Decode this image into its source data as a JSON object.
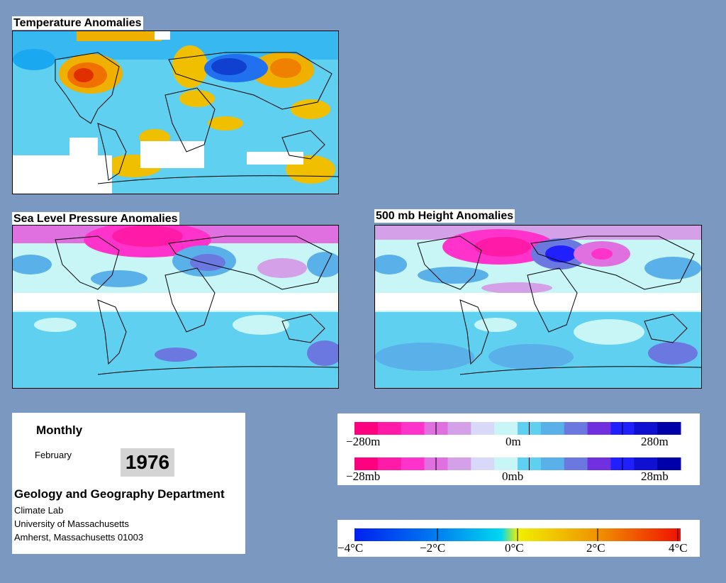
{
  "panels": {
    "temperature": {
      "title": "Temperature Anomalies"
    },
    "slp": {
      "title": "Sea Level Pressure Anomalies"
    },
    "height500": {
      "title": "500 mb Height Anomalies"
    }
  },
  "info": {
    "period_type": "Monthly",
    "month": "February",
    "year": "1976",
    "department": "Geology and Geography Department",
    "lab": "Climate Lab",
    "university": "University of Massachusetts",
    "address": "Amherst, Massachusetts 01003"
  },
  "legend_height": {
    "min_label": "−280m",
    "mid_label": "0m",
    "max_label": "280m",
    "colors": [
      "#ff0080",
      "#ff1aa8",
      "#ff33cc",
      "#e070e0",
      "#d4a0e8",
      "#d8d8f8",
      "#c8f6f6",
      "#5fd0f0",
      "#5ab0e8",
      "#6a78e0",
      "#7030e0",
      "#2020ff",
      "#1010d0",
      "#0000a8"
    ]
  },
  "legend_pressure": {
    "min_label": "−28mb",
    "mid_label": "0mb",
    "max_label": "28mb",
    "colors": [
      "#ff0080",
      "#ff1aa8",
      "#ff33cc",
      "#e070e0",
      "#d4a0e8",
      "#d8d8f8",
      "#c8f6f6",
      "#5fd0f0",
      "#5ab0e8",
      "#6a78e0",
      "#7030e0",
      "#2020ff",
      "#1010d0",
      "#0000a8"
    ]
  },
  "legend_temperature": {
    "labels": [
      "−4°C",
      "−2°C",
      "0°C",
      "2°C",
      "4°C"
    ],
    "gradient": [
      "#0020f0",
      "#0060f0",
      "#1aa8f0",
      "#00d8f0",
      "#00e8e8",
      "#f0f000",
      "#f0c000",
      "#f09000",
      "#f06000",
      "#f01000"
    ]
  },
  "colors": {
    "background": "#7b98c0",
    "warm": "#f0a000",
    "cold": "#20b0f0",
    "high_pressure": "#ff33cc",
    "low_pressure": "#4060e0"
  }
}
